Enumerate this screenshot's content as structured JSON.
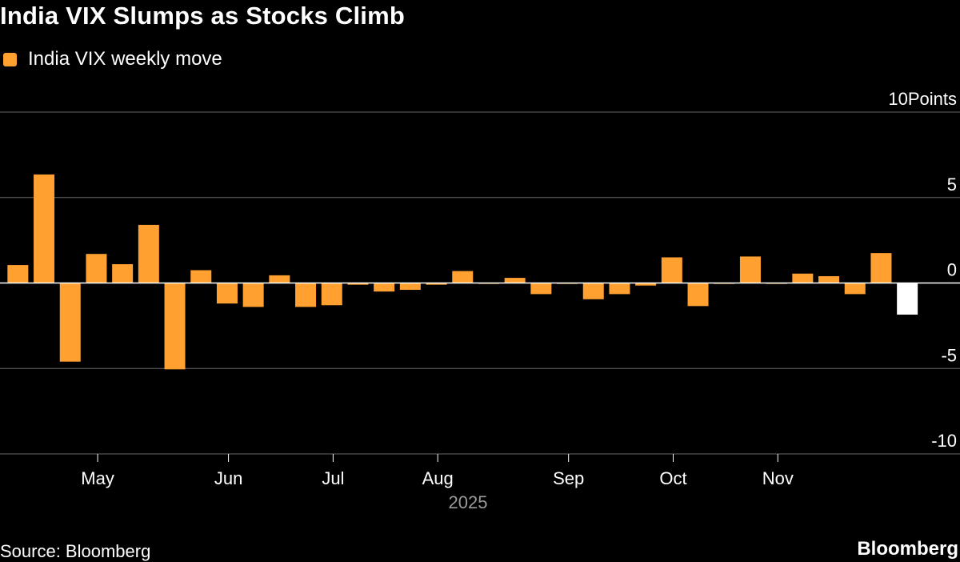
{
  "title": "India VIX Slumps as Stocks Climb",
  "legend": {
    "label": "India VIX weekly move",
    "color": "#FFA030"
  },
  "source": "Source: Bloomberg",
  "brand": "Bloomberg",
  "colors": {
    "positive": "#FFA030",
    "last": "#FFFFFF",
    "grid": "#666666",
    "baseline": "#FFFFFF",
    "year": "#9A9A9A"
  },
  "chart_data": {
    "type": "bar",
    "title": "India VIX Slumps as Stocks Climb",
    "series": [
      {
        "name": "India VIX weekly move",
        "values": [
          1.05,
          6.35,
          -4.6,
          1.7,
          1.1,
          3.4,
          -5.05,
          0.75,
          -1.2,
          -1.4,
          0.45,
          -1.4,
          -1.3,
          -0.1,
          -0.5,
          -0.4,
          -0.1,
          0.7,
          -0.05,
          0.3,
          -0.65,
          -0.05,
          -0.95,
          -0.65,
          -0.15,
          1.5,
          -1.35,
          -0.05,
          1.55,
          -0.05,
          0.55,
          0.4,
          -0.65,
          1.75,
          -1.85
        ]
      }
    ],
    "highlight_last": true,
    "ylim": [
      -10,
      10
    ],
    "yticks": [
      {
        "value": 10,
        "label": "10Points"
      },
      {
        "value": 5,
        "label": "5"
      },
      {
        "value": 0,
        "label": "0"
      },
      {
        "value": -5,
        "label": "-5"
      },
      {
        "value": -10,
        "label": "-10"
      }
    ],
    "xticks": [
      {
        "label": "May",
        "pos": 3.55
      },
      {
        "label": "Jun",
        "pos": 8.55
      },
      {
        "label": "Jul",
        "pos": 12.55
      },
      {
        "label": "Aug",
        "pos": 16.55
      },
      {
        "label": "Sep",
        "pos": 21.55
      },
      {
        "label": "Oct",
        "pos": 25.55
      },
      {
        "label": "Nov",
        "pos": 29.55
      }
    ],
    "year_label": "2025",
    "xlabel": "",
    "ylabel": "Points"
  }
}
